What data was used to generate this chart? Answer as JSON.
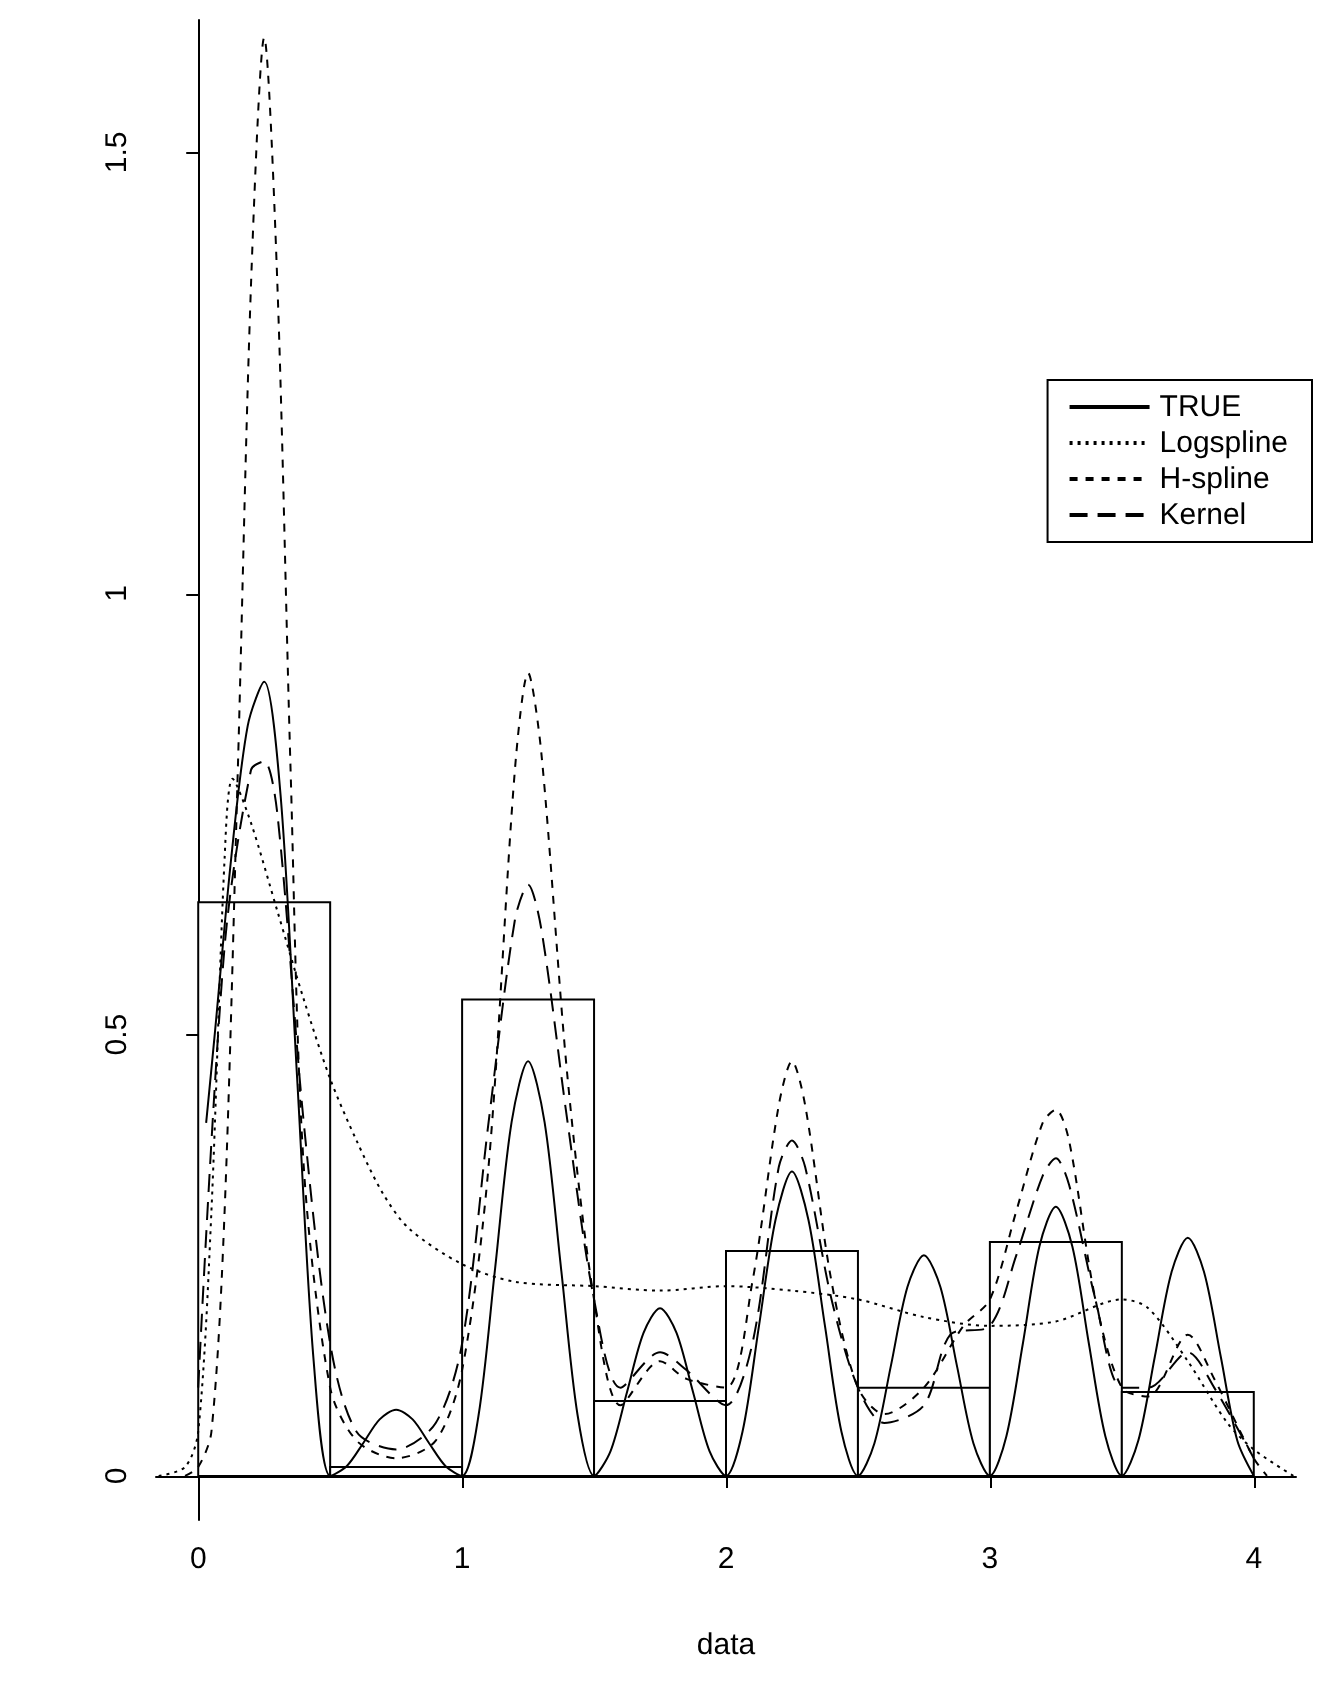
{
  "chart_data": {
    "type": "histogram",
    "xlabel": "data",
    "bins": [
      0,
      0.5,
      1,
      1.5,
      2,
      2.5,
      3,
      3.5,
      4
    ],
    "values": [
      0.65,
      0.01,
      0.54,
      0.085,
      0.255,
      0.1,
      0.265,
      0.095
    ],
    "color": "#ffffff",
    "xlim": [
      -0.16,
      4.16
    ],
    "ylim": [
      -0.05,
      1.65
    ],
    "xticks": [
      0,
      1,
      2,
      3,
      4
    ],
    "yticks": [
      0,
      0.5,
      1,
      1.5
    ],
    "legend": "top right",
    "grid": false,
    "series": [
      {
        "name": "TRUE",
        "type": "line",
        "color": "#000000",
        "line_style": "solid",
        "x": [
          0.03,
          0.0625,
          0.125,
          0.1875,
          0.25,
          0.3125,
          0.375,
          0.4375,
          0.5,
          0.5625,
          0.625,
          0.6875,
          0.75,
          0.8125,
          0.875,
          0.9375,
          1,
          1.0625,
          1.125,
          1.1875,
          1.25,
          1.3125,
          1.375,
          1.4375,
          1.5,
          1.5625,
          1.625,
          1.6875,
          1.75,
          1.8125,
          1.875,
          1.9375,
          2,
          2.0625,
          2.125,
          2.1875,
          2.25,
          2.3125,
          2.375,
          2.4375,
          2.5,
          2.5625,
          2.625,
          2.6875,
          2.75,
          2.8125,
          2.875,
          2.9375,
          3,
          3.0625,
          3.125,
          3.1875,
          3.25,
          3.3125,
          3.375,
          3.4375,
          3.5,
          3.5625,
          3.625,
          3.6875,
          3.75,
          3.8125,
          3.875,
          3.9375,
          4
        ],
        "values": [
          0.4,
          0.5,
          0.7,
          0.85,
          0.9,
          0.77,
          0.45,
          0.13,
          0,
          0.011,
          0.037,
          0.064,
          0.075,
          0.064,
          0.037,
          0.011,
          0,
          0.069,
          0.235,
          0.401,
          0.47,
          0.401,
          0.235,
          0.069,
          0,
          0.028,
          0.095,
          0.162,
          0.19,
          0.162,
          0.095,
          0.028,
          0,
          0.05,
          0.17,
          0.29,
          0.345,
          0.29,
          0.17,
          0.05,
          0,
          0.037,
          0.125,
          0.214,
          0.25,
          0.214,
          0.125,
          0.037,
          0,
          0.045,
          0.15,
          0.26,
          0.305,
          0.26,
          0.15,
          0.045,
          0,
          0.04,
          0.135,
          0.23,
          0.27,
          0.23,
          0.135,
          0.04,
          0
        ]
      },
      {
        "name": "Logspline",
        "type": "line",
        "color": "#000000",
        "line_style": "dotted",
        "x": [
          -0.15,
          -0.05,
          0,
          0.05,
          0.1,
          0.13,
          0.2,
          0.3,
          0.4,
          0.5,
          0.6,
          0.7,
          0.8,
          1,
          1.2,
          1.5,
          1.75,
          2,
          2.25,
          2.5,
          2.75,
          3,
          3.25,
          3.5,
          3.6,
          3.75,
          3.9,
          4,
          4.15
        ],
        "values": [
          0,
          0.01,
          0.05,
          0.3,
          0.7,
          0.79,
          0.74,
          0.64,
          0.54,
          0.45,
          0.38,
          0.32,
          0.28,
          0.24,
          0.22,
          0.215,
          0.21,
          0.215,
          0.21,
          0.2,
          0.18,
          0.17,
          0.175,
          0.2,
          0.19,
          0.13,
          0.06,
          0.03,
          0
        ]
      },
      {
        "name": "H-spline",
        "type": "line",
        "color": "#000000",
        "line_style": "dashed",
        "x": [
          -0.05,
          0,
          0.05,
          0.1,
          0.15,
          0.2,
          0.25,
          0.3,
          0.35,
          0.4,
          0.5,
          0.6,
          0.75,
          0.9,
          1,
          1.1,
          1.2,
          1.25,
          1.3,
          1.4,
          1.5,
          1.6,
          1.75,
          1.85,
          2,
          2.1,
          2.2,
          2.25,
          2.3,
          2.4,
          2.5,
          2.6,
          2.75,
          2.9,
          3,
          3.1,
          3.2,
          3.25,
          3.3,
          3.4,
          3.5,
          3.6,
          3.75,
          3.85,
          4,
          4.05
        ],
        "values": [
          0,
          0.01,
          0.05,
          0.3,
          0.8,
          1.35,
          1.63,
          1.35,
          0.8,
          0.35,
          0.1,
          0.04,
          0.02,
          0.04,
          0.12,
          0.35,
          0.8,
          0.91,
          0.82,
          0.45,
          0.2,
          0.08,
          0.13,
          0.11,
          0.1,
          0.22,
          0.42,
          0.47,
          0.42,
          0.22,
          0.1,
          0.07,
          0.1,
          0.17,
          0.2,
          0.3,
          0.4,
          0.415,
          0.38,
          0.2,
          0.1,
          0.09,
          0.16,
          0.11,
          0.02,
          0
        ]
      },
      {
        "name": "Kernel",
        "type": "line",
        "color": "#000000",
        "line_style": "longdash",
        "x": [
          0,
          0.1,
          0.2,
          0.25,
          0.3,
          0.4,
          0.5,
          0.6,
          0.75,
          0.9,
          1,
          1.1,
          1.2,
          1.25,
          1.3,
          1.4,
          1.5,
          1.6,
          1.75,
          1.85,
          2,
          2.1,
          2.2,
          2.25,
          2.3,
          2.4,
          2.5,
          2.6,
          2.75,
          2.85,
          3,
          3.1,
          3.2,
          3.25,
          3.3,
          3.4,
          3.5,
          3.6,
          3.75,
          3.85,
          4
        ],
        "values": [
          0.1,
          0.6,
          0.8,
          0.81,
          0.75,
          0.4,
          0.15,
          0.05,
          0.03,
          0.06,
          0.15,
          0.4,
          0.63,
          0.67,
          0.62,
          0.4,
          0.2,
          0.1,
          0.14,
          0.12,
          0.08,
          0.15,
          0.35,
          0.38,
          0.35,
          0.2,
          0.1,
          0.06,
          0.08,
          0.16,
          0.17,
          0.25,
          0.34,
          0.36,
          0.33,
          0.2,
          0.1,
          0.1,
          0.14,
          0.1,
          0.02
        ]
      }
    ]
  }
}
